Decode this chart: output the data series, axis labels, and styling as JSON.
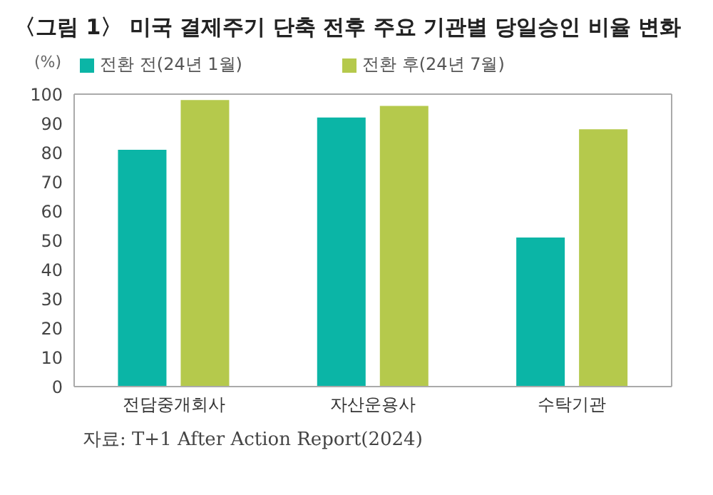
{
  "chart_data": {
    "type": "bar",
    "title": "〈그림 1〉 미국 결제주기 단축 전후 주요 기관별 당일승인 비율 변화",
    "ylabel": "(%)",
    "categories": [
      "전담중개회사",
      "자산운용사",
      "수탁기관"
    ],
    "series": [
      {
        "name": "전환 전(24년 1월)",
        "color": "#0bb5a6",
        "values": [
          81,
          92,
          51
        ]
      },
      {
        "name": "전환 후(24년 7월)",
        "color": "#b5c94c",
        "values": [
          98,
          96,
          88
        ]
      }
    ],
    "ylim": [
      0,
      100
    ],
    "yticks": [
      0,
      10,
      20,
      30,
      40,
      50,
      60,
      70,
      80,
      90,
      100
    ],
    "grid": false,
    "legend": "top",
    "annotations": [
      "자료: T+1 After Action Report(2024)"
    ]
  }
}
